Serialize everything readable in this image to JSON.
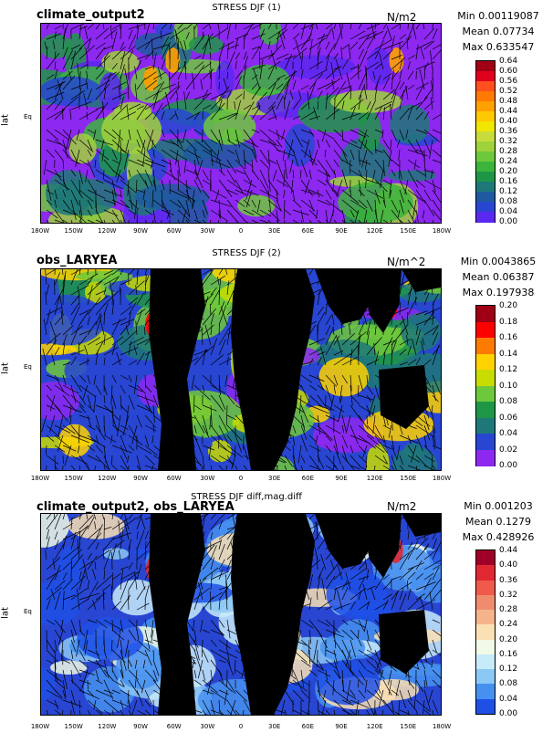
{
  "chart_data": [
    {
      "type": "heatmap",
      "left_title": "climate_output2",
      "center_title": "STRESS DJF (1)",
      "units": "N/m2",
      "stats": {
        "min": "Min 0.00119087",
        "mean": "Mean 0.07734",
        "max": "Max 0.633547"
      },
      "ylabel": "lat",
      "eq_label": "Eq",
      "x_ticks": [
        "180W",
        "150W",
        "120W",
        "90W",
        "60W",
        "30W",
        "0",
        "30E",
        "60E",
        "90E",
        "120E",
        "150E",
        "180W"
      ],
      "colorbar_labels": [
        "0.64",
        "0.60",
        "0.56",
        "0.52",
        "0.48",
        "0.44",
        "0.40",
        "0.36",
        "0.32",
        "0.28",
        "0.24",
        "0.20",
        "0.16",
        "0.12",
        "0.08",
        "0.04",
        "0.00"
      ],
      "colorbar_colors": [
        "#a00014",
        "#e0001e",
        "#ff4f1e",
        "#ff7a00",
        "#ffa000",
        "#ffc800",
        "#f0e600",
        "#c8dc3c",
        "#a0d23c",
        "#6ec83c",
        "#3cb43c",
        "#1e9646",
        "#1e7878",
        "#1e5aa0",
        "#2846d2",
        "#5a28f0"
      ],
      "background_color": "#8c28f0"
    },
    {
      "type": "heatmap",
      "left_title": "obs_LARYEA",
      "center_title": "STRESS DJF (2)",
      "units": "N/m^2",
      "stats": {
        "min": "Min 0.0043865",
        "mean": "Mean 0.06387",
        "max": "Max 0.197938"
      },
      "ylabel": "lat",
      "eq_label": "Eq",
      "x_ticks": [
        "180W",
        "150W",
        "120W",
        "90W",
        "60W",
        "30W",
        "0",
        "30E",
        "60E",
        "90E",
        "120E",
        "150E",
        "180W"
      ],
      "colorbar_labels": [
        "0.20",
        "0.18",
        "0.16",
        "0.14",
        "0.12",
        "0.10",
        "0.08",
        "0.06",
        "0.04",
        "0.02",
        "0.00"
      ],
      "colorbar_colors": [
        "#a00014",
        "#ff0000",
        "#ff7a00",
        "#ffd200",
        "#c8dc00",
        "#6ec83c",
        "#1e9646",
        "#1e7878",
        "#2846d2",
        "#8c28f0"
      ],
      "background_color": "#2846d2"
    },
    {
      "type": "heatmap",
      "left_title": "climate_output2, obs_LARYEA",
      "center_title": "STRESS DJF diff,mag.diff",
      "units": "N/m2",
      "stats": {
        "min": "Min 0.001203",
        "mean": "Mean 0.1279",
        "max": "Max 0.428926"
      },
      "ylabel": "lat",
      "eq_label": "Eq",
      "x_ticks": [
        "180W",
        "150W",
        "120W",
        "90W",
        "60W",
        "30W",
        "0",
        "30E",
        "60E",
        "90E",
        "120E",
        "150E",
        "180W"
      ],
      "colorbar_labels": [
        "0.44",
        "0.40",
        "0.36",
        "0.32",
        "0.28",
        "0.24",
        "0.20",
        "0.16",
        "0.12",
        "0.08",
        "0.04",
        "0.00"
      ],
      "colorbar_colors": [
        "#a00028",
        "#e02832",
        "#f05a4b",
        "#f08c6e",
        "#f5b48c",
        "#fae1b4",
        "#f0fae6",
        "#c8ebfa",
        "#8cc8f5",
        "#4690f0",
        "#1e50e6"
      ],
      "background_color": "#2846d2"
    }
  ]
}
